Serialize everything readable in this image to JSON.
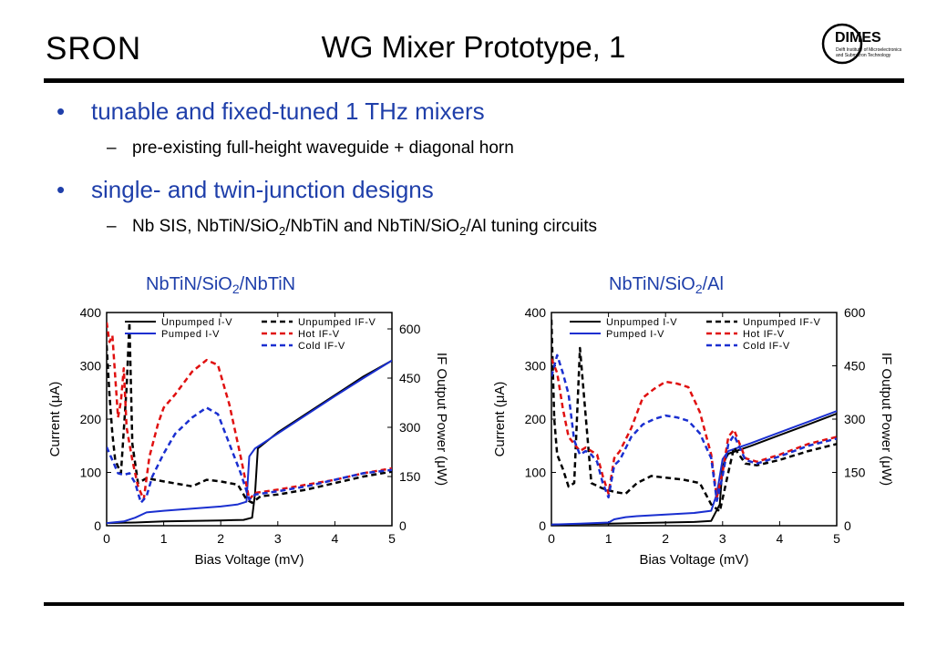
{
  "header": {
    "logo_left": "SRON",
    "title": "WG Mixer Prototype, 1",
    "logo_right": "DIMES",
    "logo_right_line1": "Delft Institute of Microelectronics",
    "logo_right_line2": "and Submicron Technology"
  },
  "bullets": [
    {
      "text": "tunable and fixed-tuned 1 THz mixers",
      "sub": "pre-existing full-height waveguide + diagonal horn"
    },
    {
      "text": "single- and twin-junction designs",
      "sub_parts": [
        "Nb SIS, NbTiN/SiO",
        "2",
        "/NbTiN and NbTiN/SiO",
        "2",
        "/Al tuning circuits"
      ]
    }
  ],
  "colors": {
    "accent": "#1f3faa",
    "pumped": "#1a2fd0",
    "hot": "#e01010",
    "cold": "#1a2fd0",
    "unpumped": "#000000"
  },
  "chart_data": [
    {
      "type": "line",
      "title_parts": [
        "NbTiN/SiO",
        "2",
        "/NbTiN"
      ],
      "xlabel": "Bias Voltage (mV)",
      "ylabel": "Current (μA)",
      "y2label": "IF Output Power (μW)",
      "xlim": [
        0,
        5
      ],
      "ylim": [
        0,
        400
      ],
      "y2lim": [
        0,
        650
      ],
      "xticks": [
        "0",
        "1",
        "2",
        "3",
        "4",
        "5"
      ],
      "yticks": [
        "0",
        "100",
        "200",
        "300",
        "400"
      ],
      "y2ticks": [
        "0",
        "150",
        "300",
        "450",
        "600"
      ],
      "legend": [
        "Unpumped I-V",
        "Pumped I-V",
        "Unpumped IF-V",
        "Hot IF-V",
        "Cold IF-V"
      ],
      "series": [
        {
          "name": "Unpumped I-V",
          "axis": "left",
          "style": "solid",
          "color": "#000000",
          "x": [
            0,
            0.5,
            1.0,
            1.5,
            2.0,
            2.4,
            2.55,
            2.6,
            2.65,
            3.0,
            3.5,
            4.0,
            4.5,
            5.0
          ],
          "y": [
            5,
            6,
            8,
            9,
            10,
            11,
            15,
            60,
            145,
            175,
            210,
            245,
            280,
            310
          ]
        },
        {
          "name": "Pumped I-V",
          "axis": "left",
          "style": "solid",
          "color": "#1a2fd0",
          "x": [
            0,
            0.3,
            0.5,
            0.7,
            1.0,
            1.5,
            2.0,
            2.3,
            2.45,
            2.5,
            2.6,
            3.0,
            3.5,
            4.0,
            4.5,
            5.0
          ],
          "y": [
            5,
            8,
            15,
            25,
            28,
            32,
            36,
            40,
            45,
            130,
            145,
            173,
            208,
            243,
            277,
            310
          ]
        },
        {
          "name": "Unpumped IF-V",
          "axis": "right",
          "style": "dash",
          "color": "#000000",
          "x": [
            0,
            0.05,
            0.1,
            0.15,
            0.25,
            0.35,
            0.4,
            0.45,
            0.55,
            0.7,
            1.0,
            1.5,
            1.75,
            2.0,
            2.3,
            2.45,
            2.55,
            2.7,
            3.0,
            3.5,
            4.0,
            4.5,
            5.0
          ],
          "y": [
            550,
            400,
            280,
            200,
            160,
            420,
            620,
            250,
            130,
            145,
            135,
            120,
            140,
            135,
            125,
            80,
            70,
            90,
            95,
            110,
            130,
            150,
            165
          ]
        },
        {
          "name": "Hot IF-V",
          "axis": "right",
          "style": "dash",
          "color": "#e01010",
          "x": [
            0,
            0.05,
            0.1,
            0.2,
            0.25,
            0.3,
            0.35,
            0.45,
            0.55,
            0.65,
            0.75,
            0.9,
            1.0,
            1.2,
            1.5,
            1.75,
            1.95,
            2.15,
            2.35,
            2.5,
            2.6,
            3.0,
            3.5,
            4.0,
            4.5,
            5.0
          ],
          "y": [
            620,
            560,
            580,
            330,
            380,
            480,
            300,
            200,
            120,
            80,
            210,
            310,
            360,
            400,
            470,
            505,
            490,
            370,
            210,
            80,
            100,
            110,
            125,
            140,
            160,
            175
          ]
        },
        {
          "name": "Cold IF-V",
          "axis": "right",
          "style": "dash",
          "color": "#1a2fd0",
          "x": [
            0,
            0.1,
            0.2,
            0.3,
            0.4,
            0.5,
            0.6,
            0.7,
            0.8,
            1.0,
            1.2,
            1.5,
            1.75,
            1.95,
            2.15,
            2.35,
            2.5,
            2.6,
            3.0,
            3.5,
            4.0,
            4.5,
            5.0
          ],
          "y": [
            240,
            200,
            160,
            155,
            160,
            130,
            70,
            90,
            150,
            220,
            280,
            330,
            360,
            340,
            250,
            160,
            80,
            95,
            105,
            120,
            140,
            160,
            170
          ]
        }
      ]
    },
    {
      "type": "line",
      "title_parts": [
        "NbTiN/SiO",
        "2",
        "/Al"
      ],
      "xlabel": "Bias Voltage (mV)",
      "ylabel": "Current (μA)",
      "y2label": "IF Output Power (μW)",
      "xlim": [
        0,
        5
      ],
      "ylim": [
        0,
        400
      ],
      "y2lim": [
        0,
        600
      ],
      "xticks": [
        "0",
        "1",
        "2",
        "3",
        "4",
        "5"
      ],
      "yticks": [
        "0",
        "100",
        "200",
        "300",
        "400"
      ],
      "y2ticks": [
        "0",
        "150",
        "300",
        "450",
        "600"
      ],
      "legend": [
        "Unpumped I-V",
        "Pumped I-V",
        "Unpumped IF-V",
        "Hot IF-V",
        "Cold IF-V"
      ],
      "series": [
        {
          "name": "Unpumped I-V",
          "axis": "left",
          "style": "solid",
          "color": "#000000",
          "x": [
            0,
            0.5,
            1.0,
            1.5,
            2.0,
            2.5,
            2.8,
            2.95,
            3.0,
            3.05,
            3.1,
            3.5,
            4.0,
            4.5,
            5.0
          ],
          "y": [
            2,
            3,
            4,
            5,
            6,
            7,
            9,
            40,
            110,
            125,
            135,
            150,
            170,
            190,
            210
          ]
        },
        {
          "name": "Pumped I-V",
          "axis": "left",
          "style": "solid",
          "color": "#1a2fd0",
          "x": [
            0,
            0.5,
            1.0,
            1.1,
            1.3,
            1.5,
            2.0,
            2.5,
            2.8,
            2.9,
            3.0,
            3.1,
            3.5,
            4.0,
            4.5,
            5.0
          ],
          "y": [
            2,
            4,
            6,
            12,
            16,
            18,
            21,
            24,
            28,
            60,
            125,
            140,
            155,
            175,
            195,
            215
          ]
        },
        {
          "name": "Unpumped IF-V",
          "axis": "right",
          "style": "dash",
          "color": "#000000",
          "x": [
            0,
            0.05,
            0.1,
            0.2,
            0.3,
            0.4,
            0.5,
            0.7,
            0.9,
            1.0,
            1.1,
            1.3,
            1.5,
            1.75,
            2.0,
            2.3,
            2.6,
            2.8,
            2.95,
            3.1,
            3.2,
            3.4,
            3.6,
            4.0,
            4.5,
            5.0
          ],
          "y": [
            580,
            300,
            200,
            160,
            110,
            120,
            500,
            120,
            105,
            100,
            95,
            90,
            120,
            140,
            135,
            130,
            120,
            60,
            40,
            150,
            220,
            175,
            170,
            185,
            210,
            230
          ]
        },
        {
          "name": "Hot IF-V",
          "axis": "right",
          "style": "dash",
          "color": "#e01010",
          "x": [
            0,
            0.1,
            0.2,
            0.3,
            0.4,
            0.5,
            0.6,
            0.7,
            0.8,
            0.9,
            1.0,
            1.1,
            1.2,
            1.4,
            1.6,
            1.8,
            2.0,
            2.2,
            2.4,
            2.6,
            2.8,
            2.9,
            3.0,
            3.1,
            3.2,
            3.4,
            3.6,
            4.0,
            4.5,
            5.0
          ],
          "y": [
            470,
            430,
            330,
            250,
            230,
            210,
            220,
            210,
            200,
            140,
            90,
            190,
            210,
            275,
            360,
            385,
            405,
            400,
            390,
            320,
            200,
            80,
            150,
            250,
            270,
            190,
            180,
            200,
            230,
            250
          ]
        },
        {
          "name": "Cold IF-V",
          "axis": "right",
          "style": "dash",
          "color": "#1a2fd0",
          "x": [
            0,
            0.1,
            0.2,
            0.3,
            0.4,
            0.5,
            0.6,
            0.7,
            0.8,
            0.9,
            1.0,
            1.1,
            1.2,
            1.4,
            1.6,
            1.8,
            2.0,
            2.2,
            2.4,
            2.6,
            2.8,
            2.9,
            3.0,
            3.1,
            3.2,
            3.4,
            3.6,
            4.0,
            4.5,
            5.0
          ],
          "y": [
            420,
            480,
            430,
            370,
            240,
            200,
            210,
            200,
            180,
            120,
            80,
            170,
            185,
            250,
            285,
            300,
            310,
            305,
            295,
            260,
            190,
            70,
            140,
            230,
            255,
            185,
            175,
            195,
            225,
            245
          ]
        }
      ]
    }
  ]
}
